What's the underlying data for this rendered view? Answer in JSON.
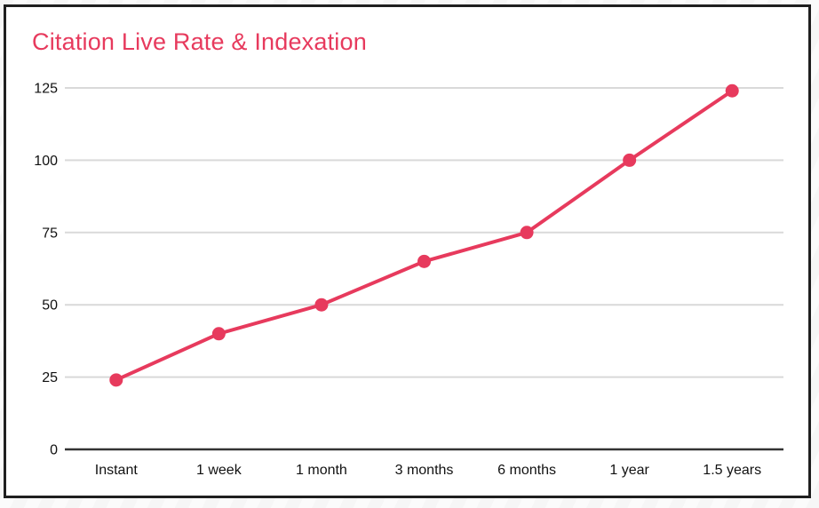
{
  "chart_data": {
    "type": "line",
    "title": "Citation Live Rate & Indexation",
    "categories": [
      "Instant",
      "1 week",
      "1 month",
      "3 months",
      "6 months",
      "1 year",
      "1.5 years"
    ],
    "series": [
      {
        "name": "Citation Live Rate & Indexation",
        "values": [
          24,
          40,
          50,
          65,
          75,
          100,
          124
        ]
      }
    ],
    "y_ticks": [
      0,
      25,
      50,
      75,
      100,
      125
    ],
    "ylim": [
      0,
      125
    ],
    "xlabel": "",
    "ylabel": "",
    "grid": "horizontal",
    "legend": "none",
    "colors": {
      "series": "#e73a5d",
      "title": "#e73a5d",
      "gridline": "#d9d9d9",
      "axis": "#333333",
      "label": "#111111",
      "frame_border": "#1f1f1f",
      "background": "#ffffff"
    }
  }
}
